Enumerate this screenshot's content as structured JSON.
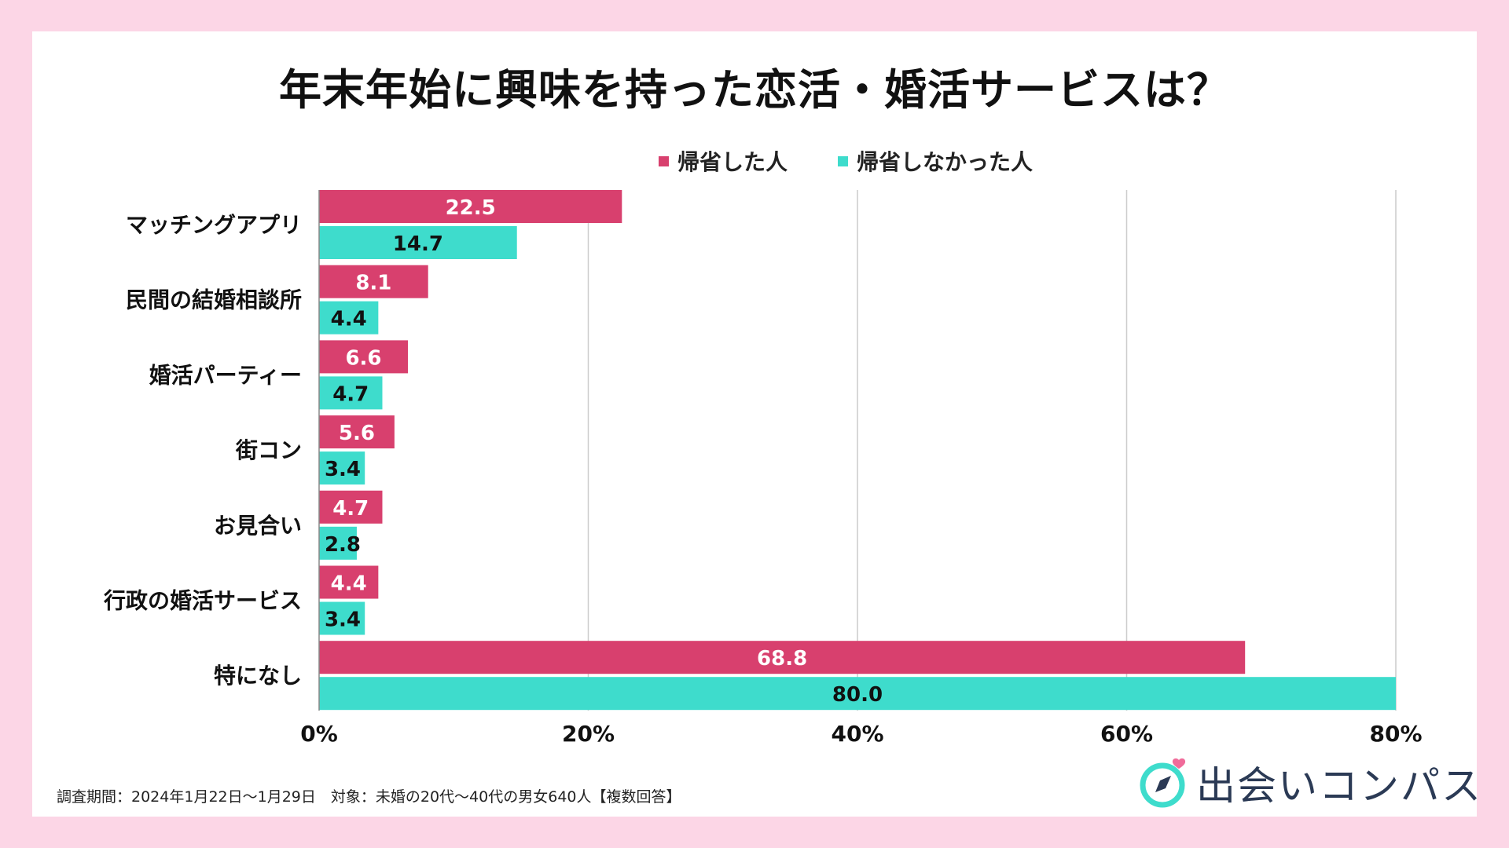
{
  "title": "年末年始に興味を持った恋活・婚活サービスは？",
  "footnote": "調査期間：2024年1月22日〜1月29日　対象：未婚の20代〜40代の男女640人【複数回答】",
  "logo": {
    "name": "出会いコンパス",
    "icon": "compass-heart-icon"
  },
  "colors": {
    "series1": "#d8406e",
    "series2": "#3edccc",
    "background": "#fcd6e6",
    "grid": "#cccccc"
  },
  "chart_data": {
    "type": "bar",
    "orientation": "horizontal",
    "title": "年末年始に興味を持った恋活・婚活サービスは？",
    "categories": [
      "マッチングアプリ",
      "民間の結婚相談所",
      "婚活パーティー",
      "街コン",
      "お見合い",
      "行政の婚活サービス",
      "特になし"
    ],
    "series": [
      {
        "name": "帰省した人",
        "values": [
          22.5,
          8.1,
          6.6,
          5.6,
          4.7,
          4.4,
          68.8
        ],
        "labels": [
          "22.5",
          "8.1",
          "6.6",
          "5.6",
          "4.7",
          "4.4",
          "68.8"
        ]
      },
      {
        "name": "帰省しなかった人",
        "values": [
          14.7,
          4.4,
          4.7,
          3.4,
          2.8,
          3.4,
          80.0
        ],
        "labels": [
          "14.7",
          "4.4",
          "4.7",
          "3.4",
          "2.8",
          "3.4",
          "80.0"
        ]
      }
    ],
    "xlim": [
      0,
      80
    ],
    "xticks": [
      "0%",
      "20%",
      "40%",
      "60%",
      "80%"
    ],
    "xtick_values": [
      0,
      20,
      40,
      60,
      80
    ],
    "grid": true,
    "legend": "top-right"
  }
}
